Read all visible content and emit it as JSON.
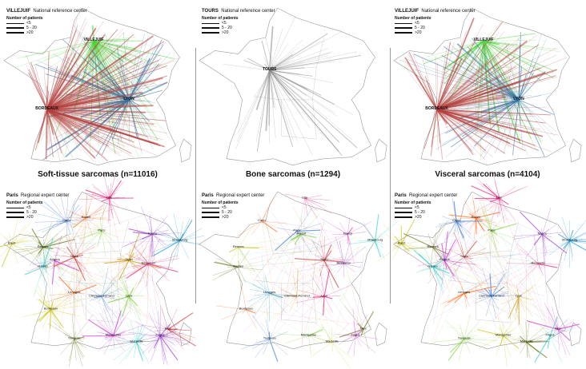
{
  "legend_caption": "Number of patients",
  "legend_classes": [
    "<5",
    "5 - 20",
    ">20"
  ],
  "row_labels": {
    "national": "National reference center",
    "regional": "Regional expert center"
  },
  "sarcoma_types": [
    {
      "caption": "Soft-tissue sarcomas (n=11016)",
      "national_center": "VILLEJUIF",
      "national_hubs": [
        "VILLEJUIF",
        "LYON",
        "BORDEAUX"
      ]
    },
    {
      "caption": "Bone sarcomas (n=1294)",
      "national_center": "TOURS",
      "national_hubs": [
        "TOURS"
      ]
    },
    {
      "caption": "Visceral sarcomas (n=4104)",
      "national_center": "VILLEJUIF",
      "national_hubs": [
        "VILLEJUIF",
        "LYON",
        "BORDEAUX"
      ]
    }
  ],
  "regional_center": "Paris",
  "regional_cities": {
    "soft_tissue": [
      "Lille",
      "Rouen",
      "Caen",
      "Paris",
      "Brest",
      "Rennes",
      "Angers",
      "Nantes",
      "Tours",
      "Nancy",
      "Strasbourg",
      "Dijon",
      "Besancon",
      "Limoges",
      "Clermont-Ferrand",
      "Lyon",
      "Bordeaux",
      "Toulouse",
      "Montpellier",
      "Marseille",
      "Nice",
      "Frejus"
    ],
    "bone": [
      "Lille",
      "Caen",
      "Paris",
      "Villejuif",
      "Rennes",
      "Nantes",
      "Nancy",
      "Strasbourg",
      "Dijon",
      "Besancon",
      "Limoges",
      "Clermont-Ferrand",
      "Lyon",
      "Bordeaux",
      "Toulouse",
      "Montpellier",
      "Marseille",
      "Nice",
      "Frejus"
    ],
    "visceral": [
      "Lille",
      "Rouen",
      "Caen",
      "Paris",
      "Brest",
      "Rennes",
      "Angers",
      "Nantes",
      "Tours",
      "Nancy",
      "Strasbourg",
      "Lyon",
      "Besancon",
      "Limoges",
      "Clermont-Ferrand",
      "Toulouse",
      "Montpellier",
      "Marseille",
      "Nice",
      "Frejus"
    ]
  },
  "colors": {
    "villejuif": "#4bd13a",
    "lyon": "#2e6fa3",
    "bordeaux": "#b3403e",
    "tours": "#8a8a8a",
    "outline": "#9a9a9a",
    "regional_palette": [
      "#e0217a",
      "#ff6a1a",
      "#3b78d8",
      "#7fd23a",
      "#c8c81e",
      "#6e7a1e",
      "#d23ad2",
      "#3ad2c8",
      "#d23a3a",
      "#9a3ad2",
      "#1e9ad2",
      "#d2a01e"
    ]
  }
}
